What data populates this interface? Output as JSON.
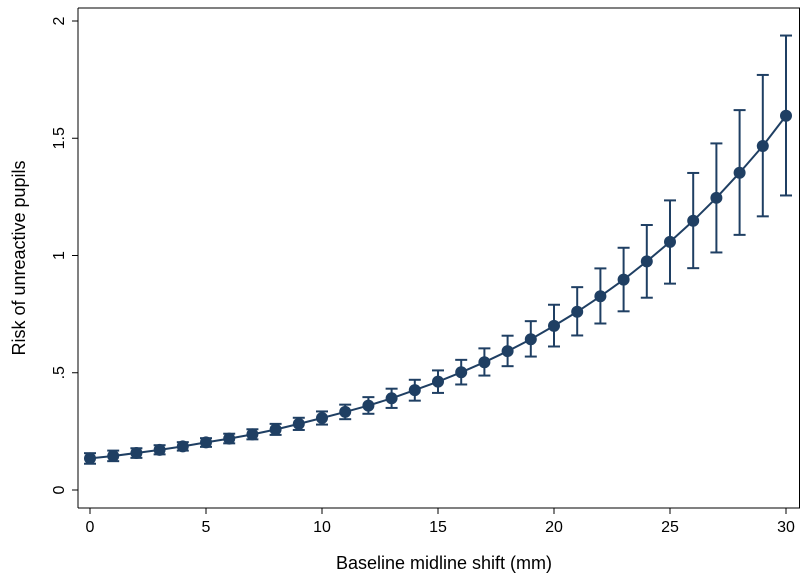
{
  "chart_data": {
    "type": "scatter",
    "title": "",
    "xlabel": "Baseline midline shift (mm)",
    "ylabel": "Risk of unreactive pupils",
    "xlim": [
      0,
      30
    ],
    "ylim": [
      0,
      2
    ],
    "x_ticks": [
      0,
      5,
      10,
      15,
      20,
      25,
      30
    ],
    "x_tick_labels": [
      "0",
      "5",
      "10",
      "15",
      "20",
      "25",
      "30"
    ],
    "y_ticks": [
      0,
      0.5,
      1,
      1.5,
      2
    ],
    "y_tick_labels": [
      "0",
      ".5",
      "1",
      "1.5",
      "2"
    ],
    "grid": false,
    "legend": "none",
    "color": "#1f3f63",
    "series": [
      {
        "x": [
          0,
          1,
          2,
          3,
          4,
          5,
          6,
          7,
          8,
          9,
          10,
          11,
          12,
          13,
          14,
          15,
          16,
          17,
          18,
          19,
          20,
          21,
          22,
          23,
          24,
          25,
          26,
          27,
          28,
          29,
          30
        ],
        "y": [
          0.135,
          0.145,
          0.158,
          0.171,
          0.186,
          0.203,
          0.219,
          0.237,
          0.258,
          0.282,
          0.307,
          0.333,
          0.36,
          0.391,
          0.426,
          0.462,
          0.502,
          0.545,
          0.592,
          0.643,
          0.7,
          0.76,
          0.826,
          0.897,
          0.975,
          1.058,
          1.148,
          1.246,
          1.353,
          1.467,
          1.596
        ],
        "lower": [
          0.112,
          0.123,
          0.137,
          0.152,
          0.168,
          0.184,
          0.199,
          0.216,
          0.235,
          0.256,
          0.279,
          0.302,
          0.325,
          0.35,
          0.381,
          0.414,
          0.45,
          0.488,
          0.528,
          0.569,
          0.612,
          0.659,
          0.71,
          0.762,
          0.82,
          0.88,
          0.946,
          1.013,
          1.088,
          1.167,
          1.256
        ],
        "upper": [
          0.157,
          0.168,
          0.178,
          0.191,
          0.204,
          0.221,
          0.24,
          0.259,
          0.282,
          0.308,
          0.335,
          0.364,
          0.396,
          0.432,
          0.47,
          0.51,
          0.555,
          0.604,
          0.658,
          0.72,
          0.79,
          0.865,
          0.945,
          1.033,
          1.13,
          1.235,
          1.352,
          1.478,
          1.62,
          1.77,
          1.938
        ]
      }
    ]
  }
}
